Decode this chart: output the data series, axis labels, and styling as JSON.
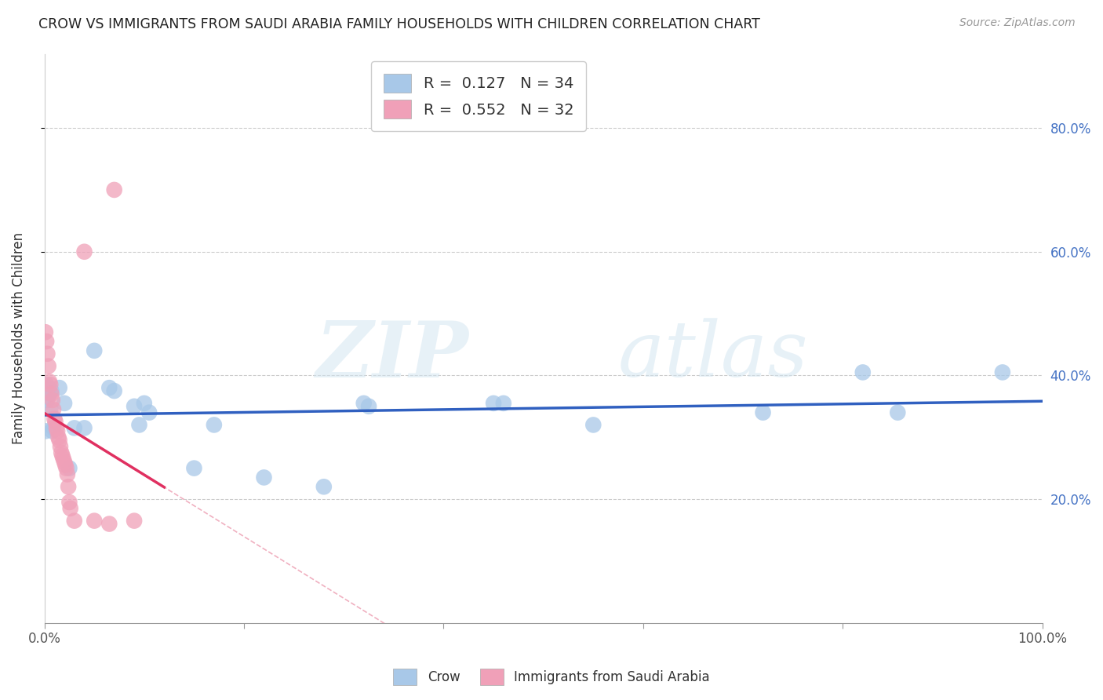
{
  "title": "CROW VS IMMIGRANTS FROM SAUDI ARABIA FAMILY HOUSEHOLDS WITH CHILDREN CORRELATION CHART",
  "source": "Source: ZipAtlas.com",
  "ylabel": "Family Households with Children",
  "xlim": [
    0,
    1.0
  ],
  "ylim": [
    0.0,
    0.92
  ],
  "x_ticks": [
    0.0,
    0.2,
    0.4,
    0.6,
    0.8,
    1.0
  ],
  "x_tick_labels": [
    "0.0%",
    "",
    "",
    "",
    "",
    "100.0%"
  ],
  "y_ticks": [
    0.2,
    0.4,
    0.6,
    0.8
  ],
  "y_tick_labels": [
    "20.0%",
    "40.0%",
    "60.0%",
    "80.0%"
  ],
  "legend_entries": [
    {
      "R": 0.127,
      "N": 34
    },
    {
      "R": 0.552,
      "N": 32
    }
  ],
  "crow_color": "#a8c8e8",
  "saudi_color": "#f0a0b8",
  "crow_scatter": [
    [
      0.001,
      0.31
    ],
    [
      0.002,
      0.385
    ],
    [
      0.003,
      0.36
    ],
    [
      0.004,
      0.38
    ],
    [
      0.005,
      0.37
    ],
    [
      0.006,
      0.345
    ],
    [
      0.007,
      0.375
    ],
    [
      0.008,
      0.31
    ],
    [
      0.009,
      0.315
    ],
    [
      0.015,
      0.38
    ],
    [
      0.02,
      0.355
    ],
    [
      0.025,
      0.25
    ],
    [
      0.03,
      0.315
    ],
    [
      0.04,
      0.315
    ],
    [
      0.05,
      0.44
    ],
    [
      0.065,
      0.38
    ],
    [
      0.07,
      0.375
    ],
    [
      0.09,
      0.35
    ],
    [
      0.095,
      0.32
    ],
    [
      0.1,
      0.355
    ],
    [
      0.105,
      0.34
    ],
    [
      0.15,
      0.25
    ],
    [
      0.17,
      0.32
    ],
    [
      0.22,
      0.235
    ],
    [
      0.28,
      0.22
    ],
    [
      0.32,
      0.355
    ],
    [
      0.325,
      0.35
    ],
    [
      0.45,
      0.355
    ],
    [
      0.46,
      0.355
    ],
    [
      0.55,
      0.32
    ],
    [
      0.72,
      0.34
    ],
    [
      0.82,
      0.405
    ],
    [
      0.855,
      0.34
    ],
    [
      0.96,
      0.405
    ]
  ],
  "saudi_scatter": [
    [
      0.001,
      0.47
    ],
    [
      0.002,
      0.455
    ],
    [
      0.003,
      0.435
    ],
    [
      0.004,
      0.415
    ],
    [
      0.005,
      0.39
    ],
    [
      0.006,
      0.385
    ],
    [
      0.007,
      0.37
    ],
    [
      0.008,
      0.36
    ],
    [
      0.009,
      0.345
    ],
    [
      0.01,
      0.33
    ],
    [
      0.011,
      0.325
    ],
    [
      0.012,
      0.315
    ],
    [
      0.013,
      0.31
    ],
    [
      0.014,
      0.3
    ],
    [
      0.015,
      0.295
    ],
    [
      0.016,
      0.285
    ],
    [
      0.017,
      0.275
    ],
    [
      0.018,
      0.27
    ],
    [
      0.019,
      0.265
    ],
    [
      0.02,
      0.26
    ],
    [
      0.021,
      0.255
    ],
    [
      0.022,
      0.25
    ],
    [
      0.023,
      0.24
    ],
    [
      0.024,
      0.22
    ],
    [
      0.025,
      0.195
    ],
    [
      0.026,
      0.185
    ],
    [
      0.03,
      0.165
    ],
    [
      0.04,
      0.6
    ],
    [
      0.05,
      0.165
    ],
    [
      0.065,
      0.16
    ],
    [
      0.07,
      0.7
    ],
    [
      0.09,
      0.165
    ]
  ],
  "crow_line_color": "#3060c0",
  "saudi_line_color": "#e03060",
  "saudi_dashed_color": "#f0b0c0",
  "watermark_zip": "ZIP",
  "watermark_atlas": "atlas",
  "background_color": "#ffffff",
  "grid_color": "#cccccc"
}
